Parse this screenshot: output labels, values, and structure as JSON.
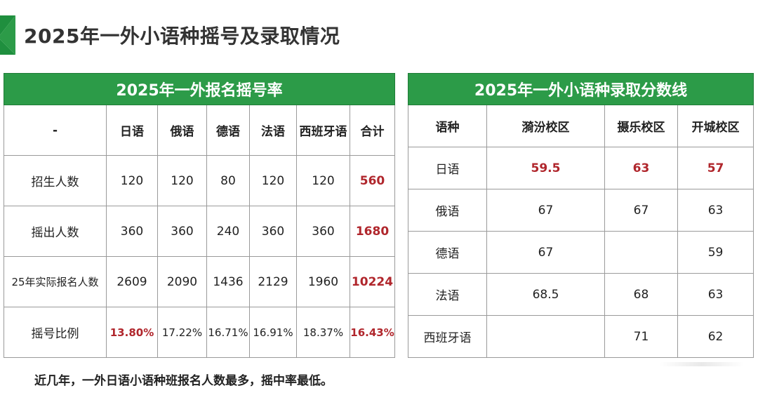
{
  "page": {
    "title": "2025年一外小语种摇号及录取情况",
    "accent_color": "#1f8f3e",
    "header_color": "#2c9b48",
    "highlight_color": "#b0262c"
  },
  "lottery_table": {
    "title": "2025年一外报名摇号率",
    "columns": [
      "-",
      "日语",
      "俄语",
      "德语",
      "法语",
      "西班牙语",
      "合计"
    ],
    "rows": [
      {
        "label": "招生人数",
        "values": [
          "120",
          "120",
          "80",
          "120",
          "120",
          "560"
        ]
      },
      {
        "label": "摇出人数",
        "values": [
          "360",
          "360",
          "240",
          "360",
          "360",
          "1680"
        ]
      },
      {
        "label": "25年实际报名人数",
        "values": [
          "2609",
          "2090",
          "1436",
          "2129",
          "1960",
          "10224"
        ]
      },
      {
        "label": "摇号比例",
        "values": [
          "13.80%",
          "17.22%",
          "16.71%",
          "16.91%",
          "18.37%",
          "16.43%"
        ]
      }
    ]
  },
  "score_table": {
    "title": "2025年一外小语种录取分数线",
    "columns": [
      "语种",
      "漪汾校区",
      "摄乐校区",
      "开城校区"
    ],
    "rows": [
      {
        "label": "日语",
        "values": [
          "59.5",
          "63",
          "57"
        ]
      },
      {
        "label": "俄语",
        "values": [
          "67",
          "67",
          "63"
        ]
      },
      {
        "label": "德语",
        "values": [
          "67",
          "",
          "59"
        ]
      },
      {
        "label": "法语",
        "values": [
          "68.5",
          "68",
          "63"
        ]
      },
      {
        "label": "西班牙语",
        "values": [
          "",
          "71",
          "62"
        ]
      }
    ]
  },
  "footnote": "近几年，一外日语小语种班报名人数最多，摇中率最低。"
}
